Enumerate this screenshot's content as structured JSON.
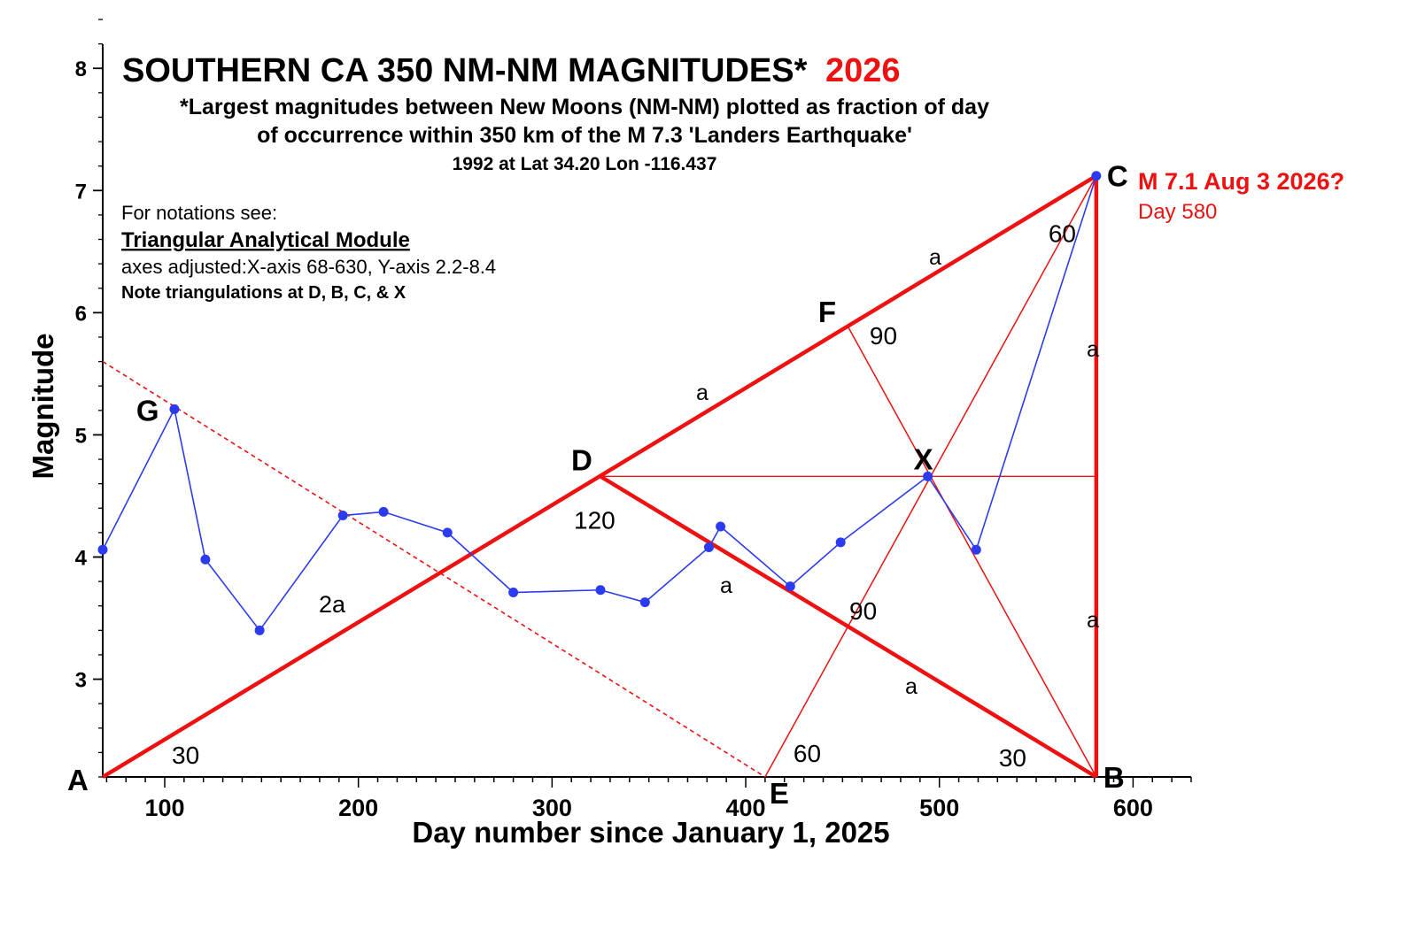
{
  "colors": {
    "series": "#2b3cf0",
    "triangle": "#ee1111",
    "text": "#000000",
    "accent": "#ee1111"
  },
  "chart_data": {
    "type": "line",
    "title_main": "SOUTHERN CA 350 NM-NM MAGNITUDES*",
    "title_year": "2026",
    "subtitle": [
      "*Largest magnitudes between New Moons (NM-NM) plotted as fraction of day",
      "of occurrence within 350 km of the M 7.3 'Landers Earthquake'",
      "1992 at Lat 34.20 Lon -116.437"
    ],
    "notes": {
      "line1": "For notations see:",
      "link": "Triangular Analytical Module",
      "line2": "axes adjusted:X-axis 68-630, Y-axis 2.2-8.4",
      "line3": "Note triangulations at D, B, C, & X"
    },
    "xlabel": "Day number since January 1, 2025",
    "ylabel": "Magnitude",
    "xlim": [
      68,
      630
    ],
    "ylim": [
      2.2,
      8.4
    ],
    "xticks": [
      100,
      200,
      300,
      400,
      500,
      600
    ],
    "yticks": [
      3,
      4,
      5,
      6,
      7,
      8
    ],
    "grid": false,
    "series": [
      {
        "points": [
          [
            68,
            4.06
          ],
          [
            105,
            5.21
          ],
          [
            121,
            3.98
          ],
          [
            149,
            3.4
          ],
          [
            192,
            4.34
          ],
          [
            213,
            4.37
          ],
          [
            246,
            4.2
          ],
          [
            280,
            3.71
          ],
          [
            325,
            3.73
          ],
          [
            348,
            3.63
          ],
          [
            381,
            4.08
          ],
          [
            387,
            4.25
          ],
          [
            423,
            3.76
          ],
          [
            449,
            4.12
          ],
          [
            494,
            4.66
          ],
          [
            519,
            4.06
          ],
          [
            581,
            7.12
          ]
        ]
      }
    ],
    "geometry": {
      "A": [
        68,
        2.2
      ],
      "B": [
        581,
        2.2
      ],
      "C": [
        581,
        7.12
      ],
      "D": [
        325,
        4.66
      ],
      "E": [
        410,
        2.2
      ],
      "F": [
        453,
        5.88
      ],
      "X": [
        494,
        4.66
      ],
      "G": [
        105,
        5.21
      ],
      "dashed_from": [
        68,
        5.6
      ],
      "dashed_to": [
        410,
        2.2
      ]
    },
    "point_labels": {
      "A": "A",
      "B": "B",
      "C": "C",
      "D": "D",
      "E": "E",
      "F": "F",
      "X": "X",
      "G": "G"
    },
    "annotations": {
      "forecast_title": "M 7.1 Aug 3 2026?",
      "forecast_day": "Day 580",
      "angle_A": "30",
      "angle_D": "120",
      "angle_F": "90",
      "angle_C": "60",
      "angle_E": "60",
      "angle_B": "30",
      "angle_mid": "90",
      "side_AD": "2a",
      "side_DF": "a",
      "side_FC": "a",
      "side_CB_upper": "a",
      "side_CB_lower": "a",
      "side_DX": "a",
      "side_XB": "a"
    }
  }
}
